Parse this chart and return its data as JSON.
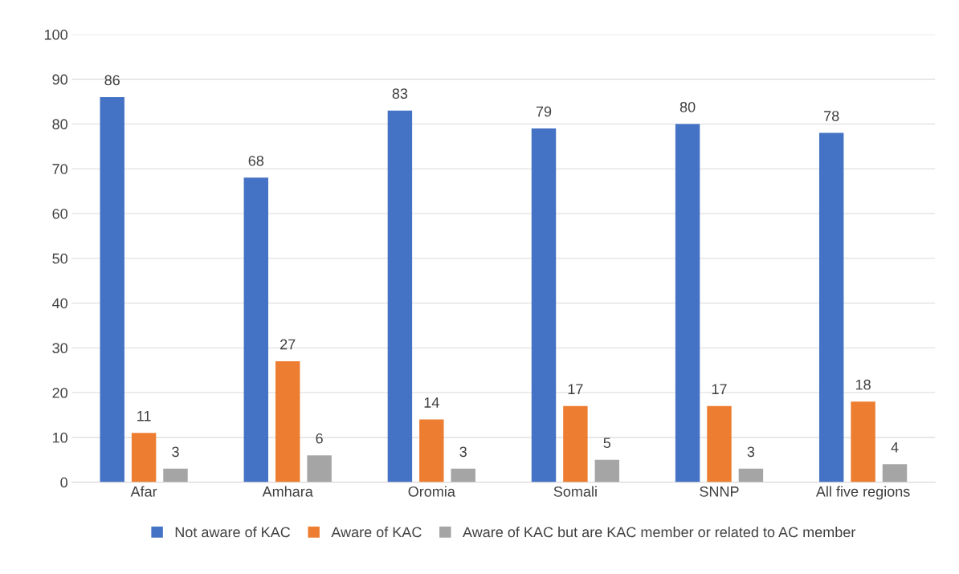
{
  "chart_data": {
    "type": "bar",
    "categories": [
      "Afar",
      "Amhara",
      "Oromia",
      "Somali",
      "SNNP",
      "All five regions"
    ],
    "series": [
      {
        "name": "Not aware of KAC",
        "color": "#4472c4",
        "values": [
          86,
          68,
          83,
          79,
          80,
          78
        ]
      },
      {
        "name": "Aware of KAC",
        "color": "#ed7d31",
        "values": [
          11,
          27,
          14,
          17,
          17,
          18
        ]
      },
      {
        "name": "Aware of KAC but are KAC member or related to AC member",
        "color": "#a5a5a5",
        "values": [
          3,
          6,
          3,
          5,
          3,
          4
        ]
      }
    ],
    "ylim": [
      0,
      100
    ],
    "yticks": [
      0,
      10,
      20,
      30,
      40,
      50,
      60,
      70,
      80,
      90,
      100
    ],
    "grid": "y",
    "legend": "bottom",
    "data_labels": true
  }
}
